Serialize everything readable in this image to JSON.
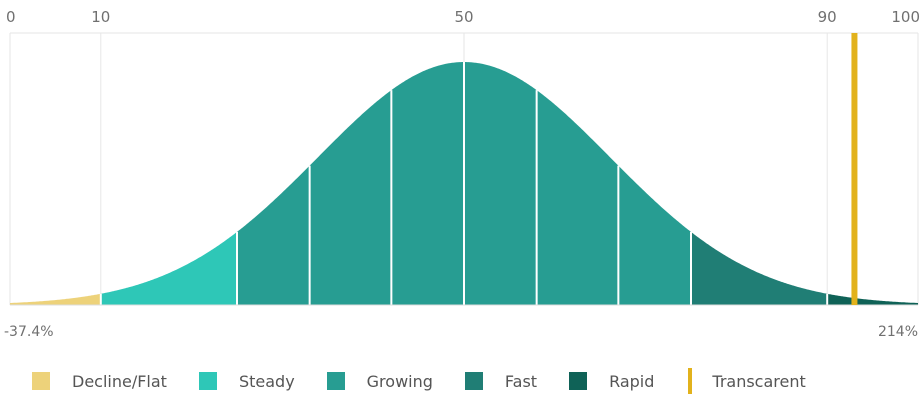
{
  "chart_data": {
    "type": "area",
    "distribution": "normal",
    "percentile_ticks": [
      0,
      10,
      50,
      90,
      100
    ],
    "range_min_label": "-37.4%",
    "range_max_label": "214%",
    "segments": [
      {
        "name": "Decline/Flat",
        "from": 0,
        "to": 10,
        "color": "#EDD27A"
      },
      {
        "name": "Steady",
        "from": 10,
        "to": 25,
        "color": "#2EC7B7"
      },
      {
        "name": "Growing",
        "from": 25,
        "to": 75,
        "color": "#279D92",
        "dividers": [
          33,
          42,
          50,
          58,
          67
        ]
      },
      {
        "name": "Fast",
        "from": 75,
        "to": 90,
        "color": "#207E75"
      },
      {
        "name": "Rapid",
        "from": 90,
        "to": 100,
        "color": "#0F6257"
      }
    ],
    "marker": {
      "name": "Transcarent",
      "percentile": 93,
      "color": "#E2B21C"
    },
    "grid": true
  },
  "legend": [
    {
      "label": "Decline/Flat",
      "color": "#EDD27A",
      "kind": "square"
    },
    {
      "label": "Steady",
      "color": "#2EC7B7",
      "kind": "square"
    },
    {
      "label": "Growing",
      "color": "#279D92",
      "kind": "square"
    },
    {
      "label": "Fast",
      "color": "#207E75",
      "kind": "square"
    },
    {
      "label": "Rapid",
      "color": "#0F6257",
      "kind": "square"
    },
    {
      "label": "Transcarent",
      "color": "#E2B21C",
      "kind": "line"
    }
  ]
}
